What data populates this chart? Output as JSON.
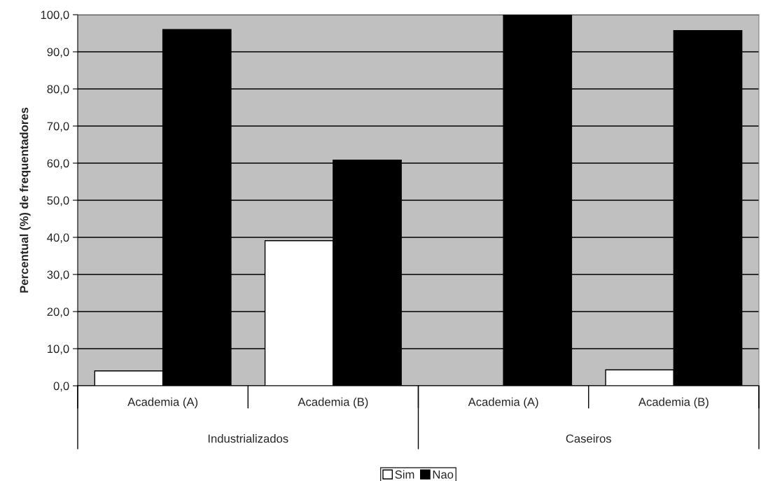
{
  "chart_data": {
    "type": "bar",
    "ylabel": "Percentual (%) de frequentadores",
    "categories": [
      "Academia (A)",
      "Academia (B)",
      "Academia (A)",
      "Academia (B)"
    ],
    "series": [
      {
        "name": "Sim",
        "color": "#ffffff",
        "values": [
          4.0,
          39.1,
          null,
          4.3
        ]
      },
      {
        "name": "Nao",
        "color": "#000000",
        "values": [
          96.0,
          60.8,
          100,
          95.7
        ]
      }
    ],
    "annotations": [
      "Industrializados",
      "Caseiros"
    ],
    "ylim": [
      0,
      100
    ],
    "yticks": [
      {
        "value": 0,
        "label": "0,0"
      },
      {
        "value": 10,
        "label": "10,0"
      },
      {
        "value": 20,
        "label": "20,0"
      },
      {
        "value": 30,
        "label": "30,0"
      },
      {
        "value": 40,
        "label": "40,0"
      },
      {
        "value": 50,
        "label": "50,0"
      },
      {
        "value": 60,
        "label": "60,0"
      },
      {
        "value": 70,
        "label": "70,0"
      },
      {
        "value": 80,
        "label": "80,0"
      },
      {
        "value": 90,
        "label": "90,0"
      },
      {
        "value": 100,
        "label": "100,0"
      }
    ],
    "grid": "y",
    "legend": "bottom"
  }
}
